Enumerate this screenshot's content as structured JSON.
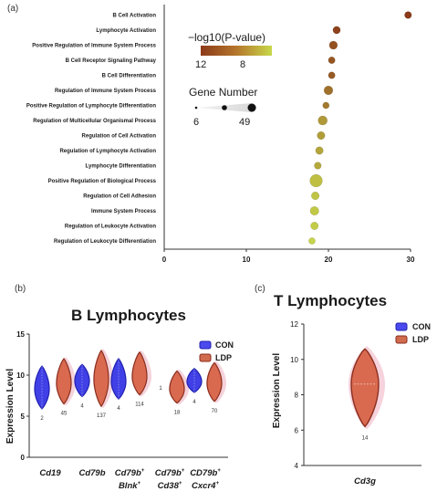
{
  "chart_data": [
    {
      "type": "scatter",
      "panel_label": "(a)",
      "categories": [
        "B Cell Activation",
        "Lymphocyte Activation",
        "Positive Regulation of Immune System Process",
        "B Cell Receptor Signaling Pathway",
        "B Cell Differentiation",
        "Regulation of Immune System Process",
        "Positive Regulation of Lymphocyte Differentiation",
        "Regulation of Multicellular Organismal Process",
        "Regulation of Cell Activation",
        "Regulation of Lymphocyte Activation",
        "Lymphocyte Differentiation",
        "Positive Regulation of Biological Process",
        "Regulation of Cell Adhesion",
        "Immune System Process",
        "Regulation of Leukocyte Activation",
        "Regulation of Leukocyte Differentiation"
      ],
      "x": [
        29.7,
        21.0,
        20.6,
        20.4,
        20.4,
        20.0,
        19.7,
        19.3,
        19.1,
        18.9,
        18.7,
        18.5,
        18.4,
        18.3,
        18.3,
        18.0
      ],
      "size": [
        10,
        12,
        16,
        9,
        9,
        20,
        8,
        22,
        14,
        13,
        10,
        49,
        14,
        19,
        13,
        8
      ],
      "neglog10p": [
        12,
        11.8,
        11.4,
        11.3,
        11.2,
        10.6,
        10.4,
        9.6,
        9.5,
        9.3,
        9.2,
        8.6,
        8.5,
        8.4,
        8.3,
        8.1
      ],
      "xlim": [
        0,
        30
      ],
      "xticks": [
        "0",
        "10",
        "20",
        "30"
      ],
      "color_legend": {
        "title": "−log10(P-value)",
        "min_label": "12",
        "max_label": "8",
        "colors": [
          "#8b3a1a",
          "#c8d84a"
        ]
      },
      "size_legend": {
        "title": "Gene Number",
        "min_label": "6",
        "max_label": "49"
      }
    },
    {
      "type": "violin",
      "panel_label": "(b)",
      "title": "B Lymphocytes",
      "ylabel": "Expression Level",
      "ylim": [
        0,
        15
      ],
      "yticks": [
        "0",
        "5",
        "10",
        "15"
      ],
      "legend": [
        "CON",
        "LDP"
      ],
      "series_colors": {
        "CON": "#2b2bdb",
        "LDP": "#b84a33"
      },
      "groups": [
        {
          "gene": "Cd19",
          "sup1": "",
          "gene2": "",
          "sup2": "",
          "con": {
            "median": 8.3,
            "min": 5.9,
            "max": 11.1,
            "n": "2"
          },
          "ldp": {
            "median": 9.0,
            "min": 6.5,
            "max": 12.0,
            "n": "45"
          }
        },
        {
          "gene": "Cd79b",
          "sup1": "",
          "gene2": "",
          "sup2": "",
          "con": {
            "median": 9.3,
            "min": 7.4,
            "max": 11.3,
            "n": "4"
          },
          "ldp": {
            "median": 9.5,
            "min": 6.2,
            "max": 13.0,
            "n": "137"
          }
        },
        {
          "gene": "Cd79b",
          "sup1": "+",
          "gene2": "Blnk",
          "sup2": "+",
          "con": {
            "median": 9.2,
            "min": 7.1,
            "max": 12.0,
            "n": "4"
          },
          "ldp": {
            "median": 9.8,
            "min": 7.6,
            "max": 12.8,
            "n": "114"
          }
        },
        {
          "gene": "Cd79b",
          "sup1": "+",
          "gene2": "Cd38",
          "sup2": "+",
          "con": {
            "median": null,
            "min": null,
            "max": null,
            "n": "1"
          },
          "ldp": {
            "median": 8.3,
            "min": 6.6,
            "max": 10.5,
            "n": "18"
          }
        },
        {
          "gene": "CD79b",
          "sup1": "+",
          "gene2": "Cxcr4",
          "sup2": "+",
          "con": {
            "median": 9.2,
            "min": 7.9,
            "max": 10.8,
            "n": "4"
          },
          "ldp": {
            "median": 9.0,
            "min": 6.8,
            "max": 11.5,
            "n": "70"
          }
        }
      ]
    },
    {
      "type": "violin",
      "panel_label": "(c)",
      "title": "T Lymphocytes",
      "ylabel": "Expression Level",
      "ylim": [
        4,
        12
      ],
      "yticks": [
        "4",
        "6",
        "8",
        "10",
        "12"
      ],
      "legend": [
        "CON",
        "LDP"
      ],
      "series_colors": {
        "CON": "#2b2bdb",
        "LDP": "#b84a33"
      },
      "groups": [
        {
          "gene": "Cd3g",
          "ldp": {
            "median": 8.6,
            "min": 6.2,
            "max": 10.6,
            "n": "14"
          }
        }
      ]
    }
  ]
}
